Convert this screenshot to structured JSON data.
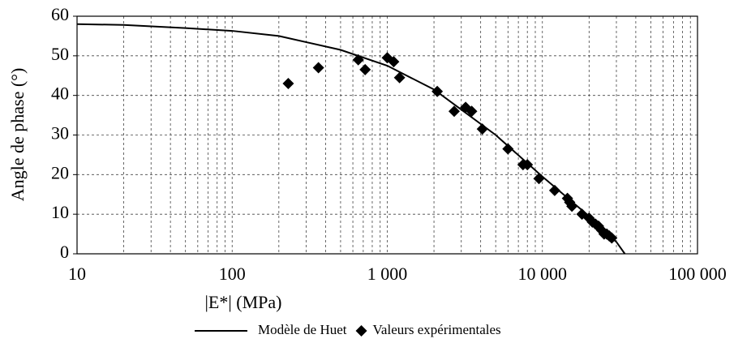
{
  "chart_data": {
    "type": "line",
    "xlabel": "|E*| (MPa)",
    "ylabel": "Angle de phase (°)",
    "xscale": "log",
    "xlim": [
      10,
      100000
    ],
    "ylim": [
      0,
      60
    ],
    "xticks": [
      10,
      100,
      {
        "value": 1000,
        "label": "1 000"
      },
      {
        "value": 10000,
        "label": "10 000"
      },
      {
        "value": 100000,
        "label": "100 000"
      }
    ],
    "yticks": [
      0,
      10,
      20,
      30,
      40,
      50,
      60
    ],
    "grid": true,
    "legend": "bottom",
    "series": [
      {
        "name": "Modèle de Huet",
        "color": "#000000",
        "style": "line",
        "x": [
          10,
          20,
          50,
          100,
          200,
          500,
          1000,
          2000,
          5000,
          10000,
          20000,
          30000,
          34000
        ],
        "values": [
          58,
          57.8,
          57,
          56.3,
          55,
          51.5,
          47.5,
          41.5,
          30,
          19.5,
          9.5,
          3,
          0
        ]
      },
      {
        "name": "Valeurs expérimentales",
        "color": "#000000",
        "style": "markers",
        "x": [
          230,
          360,
          650,
          720,
          1000,
          1100,
          1200,
          2100,
          2700,
          3200,
          3500,
          4100,
          6000,
          7500,
          8000,
          9500,
          12000,
          14500,
          15000,
          15500,
          18000,
          20000,
          21000,
          22000,
          23000,
          24000,
          25000,
          26000,
          27000,
          28000
        ],
        "values": [
          43,
          47,
          49,
          46.5,
          49.5,
          48.5,
          44.5,
          41,
          36,
          37,
          36,
          31.5,
          26.5,
          22.5,
          22.5,
          19,
          16,
          14,
          13,
          12,
          10,
          9,
          8,
          7.5,
          7,
          6,
          5,
          5,
          4.5,
          4
        ]
      }
    ]
  }
}
